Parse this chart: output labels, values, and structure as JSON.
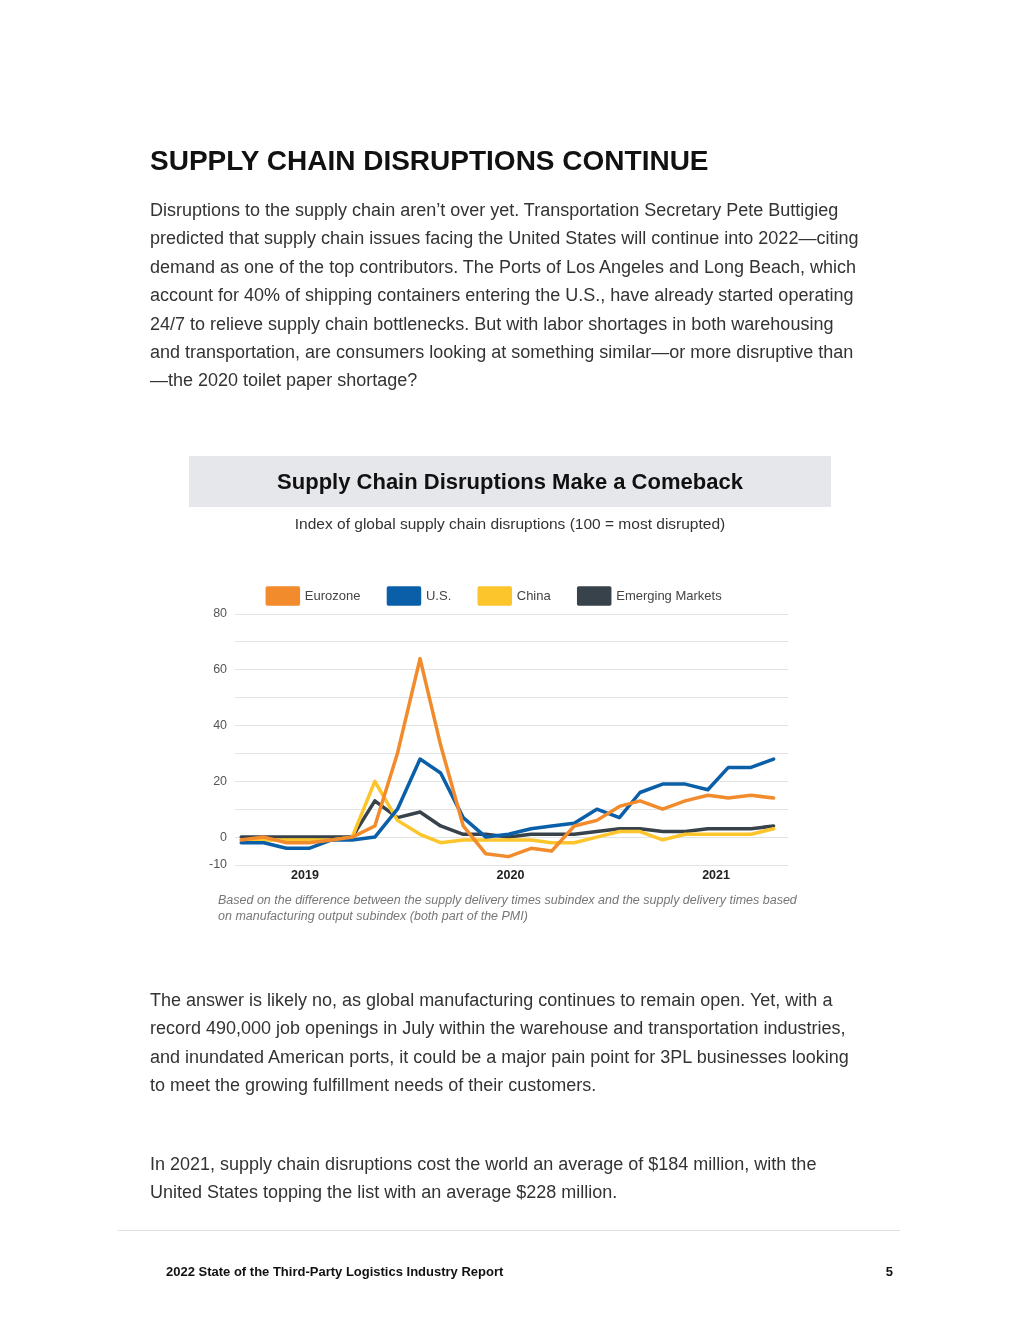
{
  "chart_data": {
    "type": "line",
    "title": "Supply Chain Disruptions Make a Comeback",
    "subtitle": "Index of global supply chain disruptions (100 = most disrupted)",
    "x": [
      2018.69,
      2018.8,
      2018.91,
      2019.02,
      2019.13,
      2019.23,
      2019.34,
      2019.45,
      2019.56,
      2019.66,
      2019.77,
      2019.88,
      2019.99,
      2020.1,
      2020.2,
      2020.31,
      2020.42,
      2020.53,
      2020.63,
      2020.74,
      2020.85,
      2020.96,
      2021.06,
      2021.17,
      2021.28
    ],
    "series": [
      {
        "name": "Eurozone",
        "color": "#f28b2c",
        "values": [
          -1,
          0,
          -2,
          -2,
          -1,
          0,
          4,
          30,
          64,
          33,
          4,
          -6,
          -7,
          -4,
          -5,
          4,
          6,
          11,
          13,
          10,
          13,
          15,
          14,
          15,
          14
        ]
      },
      {
        "name": "U.S.",
        "color": "#0b5ea8",
        "values": [
          -2,
          -2,
          -4,
          -4,
          -1,
          -1,
          0,
          10,
          28,
          23,
          7,
          0,
          1,
          3,
          4,
          5,
          10,
          7,
          16,
          19,
          19,
          17,
          25,
          25,
          28
        ]
      },
      {
        "name": "China",
        "color": "#fcc52c",
        "values": [
          -1,
          -1,
          -1,
          -1,
          -1,
          0,
          20,
          6,
          1,
          -2,
          -1,
          -1,
          -1,
          -1,
          -2,
          -2,
          0,
          2,
          2,
          -1,
          1,
          1,
          1,
          1,
          3
        ]
      },
      {
        "name": "Emerging Markets",
        "color": "#37424a",
        "values": [
          0,
          0,
          0,
          0,
          0,
          0,
          13,
          7,
          9,
          4,
          1,
          1,
          0,
          1,
          1,
          1,
          2,
          3,
          3,
          2,
          2,
          3,
          3,
          3,
          4
        ]
      }
    ],
    "xlim": [
      2018.66,
      2021.35
    ],
    "xticks": [
      2019,
      2020,
      2021
    ],
    "ylim": [
      -10,
      80
    ],
    "yticks": [
      -10,
      0,
      {
        "value": 10,
        "label": null
      },
      20,
      {
        "value": 30,
        "label": null
      },
      40,
      {
        "value": 50,
        "label": null
      },
      60,
      {
        "value": 70,
        "label": null
      },
      80
    ],
    "grid": "y",
    "legend": "top",
    "marker": "none",
    "line_style": "solid",
    "annotations": [
      "SUPPLY CHAIN DISRUPTIONS CONTINUE",
      "Disruptions to the supply chain aren’t over yet. Transportation Secretary Pete Buttigieg predicted that supply chain issues facing the United States will continue into 2022—citing demand as one of the top contributors. The Ports of Los Angeles and Long Beach, which account for 40% of shipping containers entering the U.S., have already started operating 24/7 to relieve supply chain bottlenecks. But with labor shortages in both warehousing and transportation, are consumers looking at something similar—or more disruptive than—the 2020 toilet paper shortage?",
      "Based on the difference between the supply delivery times subindex and the supply delivery times based on manufacturing output subindex (both part of the PMI)",
      "The answer is likely no, as global manufacturing continues to remain open. Yet, with a record 490,000 job openings in July within the warehouse and transportation industries, and inundated American ports, it could be a major pain point for 3PL businesses looking to meet the growing fulfillment needs of their customers.",
      "In 2021, supply chain disruptions cost the world an average of $184 million, with the United States topping the list with an average $228 million.",
      "2022 State of the Third-Party Logistics Industry Report",
      "5"
    ]
  }
}
